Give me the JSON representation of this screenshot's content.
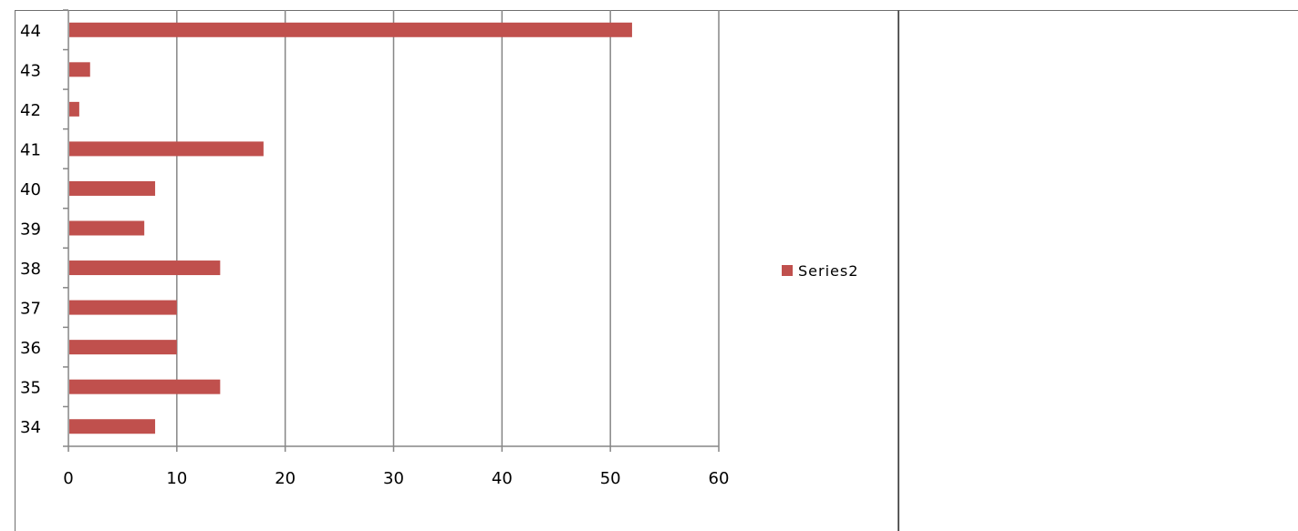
{
  "chart_data": {
    "type": "bar",
    "orientation": "horizontal",
    "title": "",
    "xlabel": "",
    "ylabel": "",
    "categories": [
      "34",
      "35",
      "36",
      "37",
      "38",
      "39",
      "40",
      "41",
      "42",
      "43",
      "44"
    ],
    "series": [
      {
        "name": "Series2",
        "values": [
          8,
          14,
          10,
          10,
          14,
          7,
          8,
          18,
          1,
          2,
          52
        ],
        "color": "#c0504d"
      }
    ],
    "xlim": [
      0,
      60
    ],
    "xticks": [
      0,
      10,
      20,
      30,
      40,
      50,
      60
    ],
    "grid": true,
    "gridline_color": "#868686",
    "legend": {
      "placement": "right",
      "entries": [
        "Series2"
      ]
    }
  }
}
